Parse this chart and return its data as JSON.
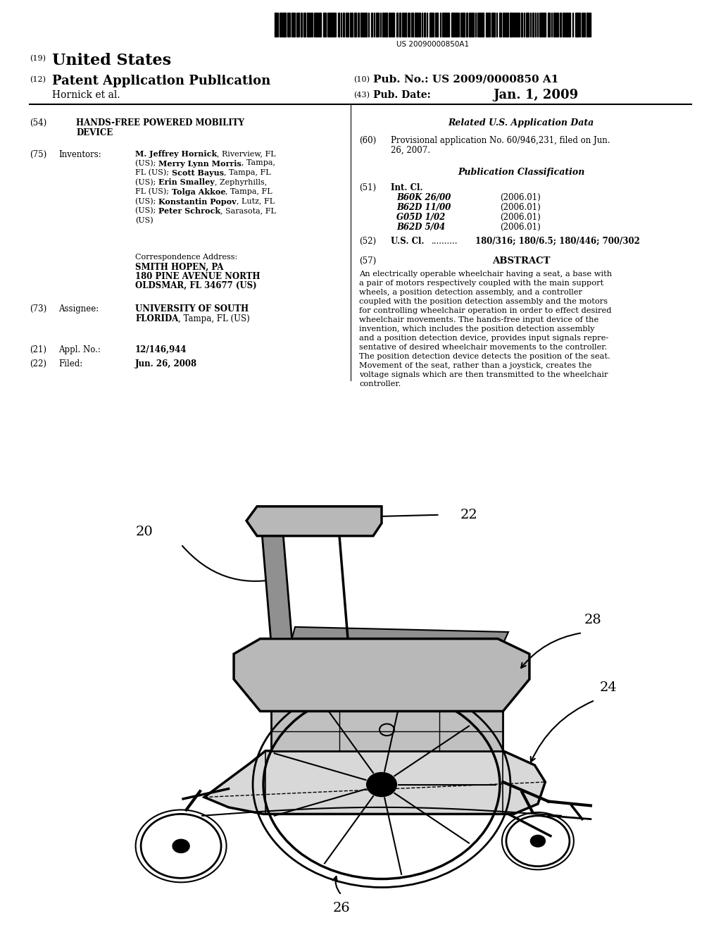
{
  "background_color": "#ffffff",
  "barcode_text": "US 20090000850A1",
  "header_19_label": "(19)",
  "header_19_text": "United States",
  "header_12_label": "(12)",
  "header_12_text": "Patent Application Publication",
  "header_10_label": "(10)",
  "header_10_pub": "Pub. No.:",
  "header_10_number": "US 2009/0000850 A1",
  "header_43_label": "(43)",
  "header_43_pub": "Pub. Date:",
  "header_43_date": "Jan. 1, 2009",
  "header_author": "Hornick et al.",
  "section54_label": "(54)",
  "section54_line1": "HANDS-FREE POWERED MOBILITY",
  "section54_line2": "DEVICE",
  "section75_label": "(75)",
  "section75_heading": "Inventors:",
  "inventors_lines": [
    [
      [
        "M. Jeffrey Hornick",
        true
      ],
      [
        ", Riverview, FL",
        false
      ]
    ],
    [
      [
        "(US); ",
        false
      ],
      [
        "Merry Lynn Morris",
        true
      ],
      [
        ", Tampa,",
        false
      ]
    ],
    [
      [
        "FL (US); ",
        false
      ],
      [
        "Scott Bayus",
        true
      ],
      [
        ", Tampa, FL",
        false
      ]
    ],
    [
      [
        "(US); ",
        false
      ],
      [
        "Erin Smalley",
        true
      ],
      [
        ", Zephyrhills,",
        false
      ]
    ],
    [
      [
        "FL (US); ",
        false
      ],
      [
        "Tolga Akkoe",
        true
      ],
      [
        ", Tampa, FL",
        false
      ]
    ],
    [
      [
        "(US); ",
        false
      ],
      [
        "Konstantin Popov",
        true
      ],
      [
        ", Lutz, FL",
        false
      ]
    ],
    [
      [
        "(US); ",
        false
      ],
      [
        "Peter Schrock",
        true
      ],
      [
        ", Sarasota, FL",
        false
      ]
    ],
    [
      [
        "(US)",
        false
      ]
    ]
  ],
  "corr_addr_label": "Correspondence Address:",
  "corr_addr_lines": [
    "SMITH HOPEN, PA",
    "180 PINE AVENUE NORTH",
    "OLDSMAR, FL 34677 (US)"
  ],
  "section73_label": "(73)",
  "section73_heading": "Assignee:",
  "assignee_line1": "UNIVERSITY OF SOUTH",
  "assignee_line2_bold": "FLORIDA",
  "assignee_line2_normal": ", Tampa, FL (US)",
  "section21_label": "(21)",
  "section21_heading": "Appl. No.:",
  "section21_value": "12/146,944",
  "section22_label": "(22)",
  "section22_heading": "Filed:",
  "section22_value": "Jun. 26, 2008",
  "related_title": "Related U.S. Application Data",
  "section60_label": "(60)",
  "section60_line1": "Provisional application No. 60/946,231, filed on Jun.",
  "section60_line2": "26, 2007.",
  "pub_class_title": "Publication Classification",
  "section51_label": "(51)",
  "section51_heading": "Int. Cl.",
  "int_cl_entries": [
    [
      "B60K 26/00",
      "(2006.01)"
    ],
    [
      "B62D 11/00",
      "(2006.01)"
    ],
    [
      "G05D 1/02",
      "(2006.01)"
    ],
    [
      "B62D 5/04",
      "(2006.01)"
    ]
  ],
  "section52_label": "(52)",
  "section52_heading": "U.S. Cl.",
  "section52_dots": "..........",
  "section52_value": "180/316; 180/6.5; 180/446; 700/302",
  "section57_label": "(57)",
  "section57_heading": "ABSTRACT",
  "abstract_lines": [
    "An electrically operable wheelchair having a seat, a base with",
    "a pair of motors respectively coupled with the main support",
    "wheels, a position detection assembly, and a controller",
    "coupled with the position detection assembly and the motors",
    "for controlling wheelchair operation in order to effect desired",
    "wheelchair movements. The hands-free input device of the",
    "invention, which includes the position detection assembly",
    "and a position detection device, provides input signals repre-",
    "sentative of desired wheelchair movements to the controller.",
    "The position detection device detects the position of the seat.",
    "Movement of the seat, rather than a joystick, creates the",
    "voltage signals which are then transmitted to the wheelchair",
    "controller."
  ],
  "label_20": "20",
  "label_22": "22",
  "label_24": "24",
  "label_26": "26",
  "label_28": "28"
}
